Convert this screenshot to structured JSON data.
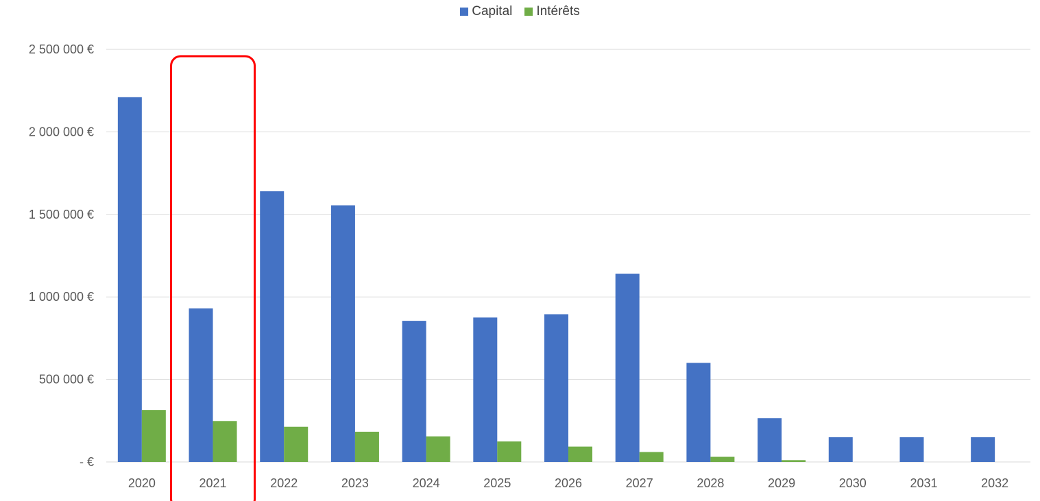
{
  "chart_data": {
    "type": "bar",
    "categories": [
      "2020",
      "2021",
      "2022",
      "2023",
      "2024",
      "2025",
      "2026",
      "2027",
      "2028",
      "2029",
      "2030",
      "2031",
      "2032"
    ],
    "series": [
      {
        "name": "Capital",
        "color": "#4472C4",
        "values": [
          2210000,
          930000,
          1640000,
          1555000,
          855000,
          875000,
          895000,
          1140000,
          600000,
          265000,
          150000,
          150000,
          150000
        ]
      },
      {
        "name": "Intérêts",
        "color": "#70AD47",
        "values": [
          315000,
          248000,
          213000,
          183000,
          155000,
          124000,
          93000,
          60000,
          31000,
          11000,
          0,
          0,
          0
        ]
      }
    ],
    "ylim": [
      0,
      2500000
    ],
    "yticks": [
      0,
      500000,
      1000000,
      1500000,
      2000000,
      2500000
    ],
    "ytick_labels": [
      "-   €",
      "500 000 €",
      "1 000 000 €",
      "1 500 000 €",
      "2 000 000 €",
      "2 500 000 €"
    ],
    "legend_position": "top-center",
    "grid": true,
    "highlighted_category": "2021",
    "highlight_color": "#FF0000"
  }
}
